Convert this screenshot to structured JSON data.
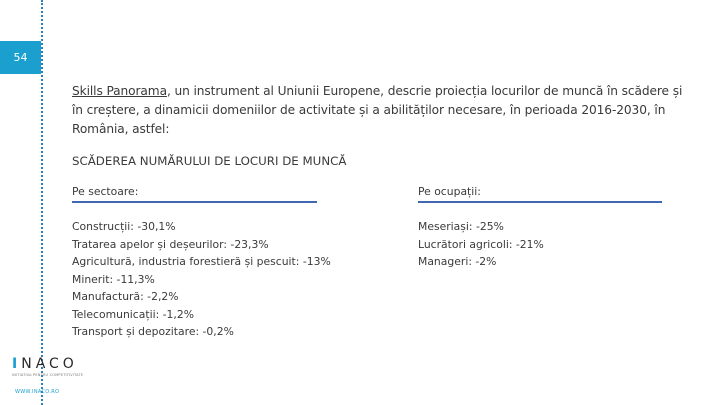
{
  "page_number": "54",
  "intro": {
    "link_text": "Skills Panorama",
    "rest_text": ", un instrument al Uniunii Europene, descrie proiecția locurilor de muncă în scădere și în creștere, a dinamicii domeniilor de activitate și a abilităților necesare, în perioada 2016-2030, în România, astfel:"
  },
  "heading": "SCĂDEREA NUMĂRULUI DE LOCURI DE MUNCĂ",
  "sectors": {
    "title": "Pe sectoare:",
    "items": [
      "Construcții: -30,1%",
      "Tratarea apelor și deșeurilor: -23,3%",
      "Agricultură, industria forestieră și pescuit: -13%",
      "Minerit: -11,3%",
      "Manufactură: -2,2%",
      "Telecomunicații: -1,2%",
      "Transport și depozitare: -0,2%"
    ]
  },
  "occupations": {
    "title": "Pe ocupații:",
    "items": [
      "Meseriași: -25%",
      "Lucrători agricoli: -21%",
      "Manageri: -2%"
    ]
  },
  "logo": {
    "word_first": "I",
    "word_rest": "NACO",
    "tagline": "INITIATIVA PENTRU COMPETITIVITATE",
    "url": "WWW.INACO.RO"
  },
  "colors": {
    "accent": "#1a9fcf",
    "rule": "#3f67b3"
  }
}
